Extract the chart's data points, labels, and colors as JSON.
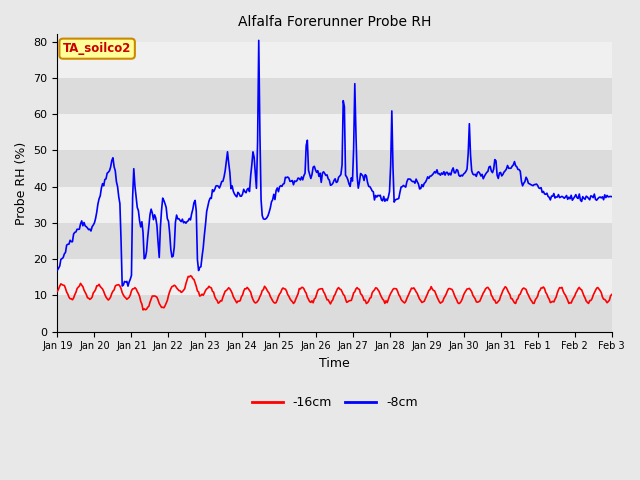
{
  "title": "Alfalfa Forerunner Probe RH",
  "ylabel": "Probe RH (%)",
  "xlabel": "Time",
  "ylim": [
    0,
    82
  ],
  "yticks": [
    0,
    10,
    20,
    30,
    40,
    50,
    60,
    70,
    80
  ],
  "bg_color": "#e8e8e8",
  "band_light": "#f0f0f0",
  "band_dark": "#dcdcdc",
  "line_red_color": "#ff0000",
  "line_blue_color": "#0000ff",
  "legend_label_red": "-16cm",
  "legend_label_blue": "-8cm",
  "annotation_text": "TA_soilco2",
  "annotation_bg": "#ffff99",
  "annotation_border": "#cc8800",
  "annotation_text_color": "#cc0000",
  "xtick_labels": [
    "Jan 19",
    "Jan 20",
    "Jan 21",
    "Jan 22",
    "Jan 23",
    "Jan 24",
    "Jan 25",
    "Jan 26",
    "Jan 27",
    "Jan 28",
    "Jan 29",
    "Jan 30",
    "Jan 31",
    "Feb 1",
    "Feb 2",
    "Feb 3"
  ],
  "num_points": 480
}
